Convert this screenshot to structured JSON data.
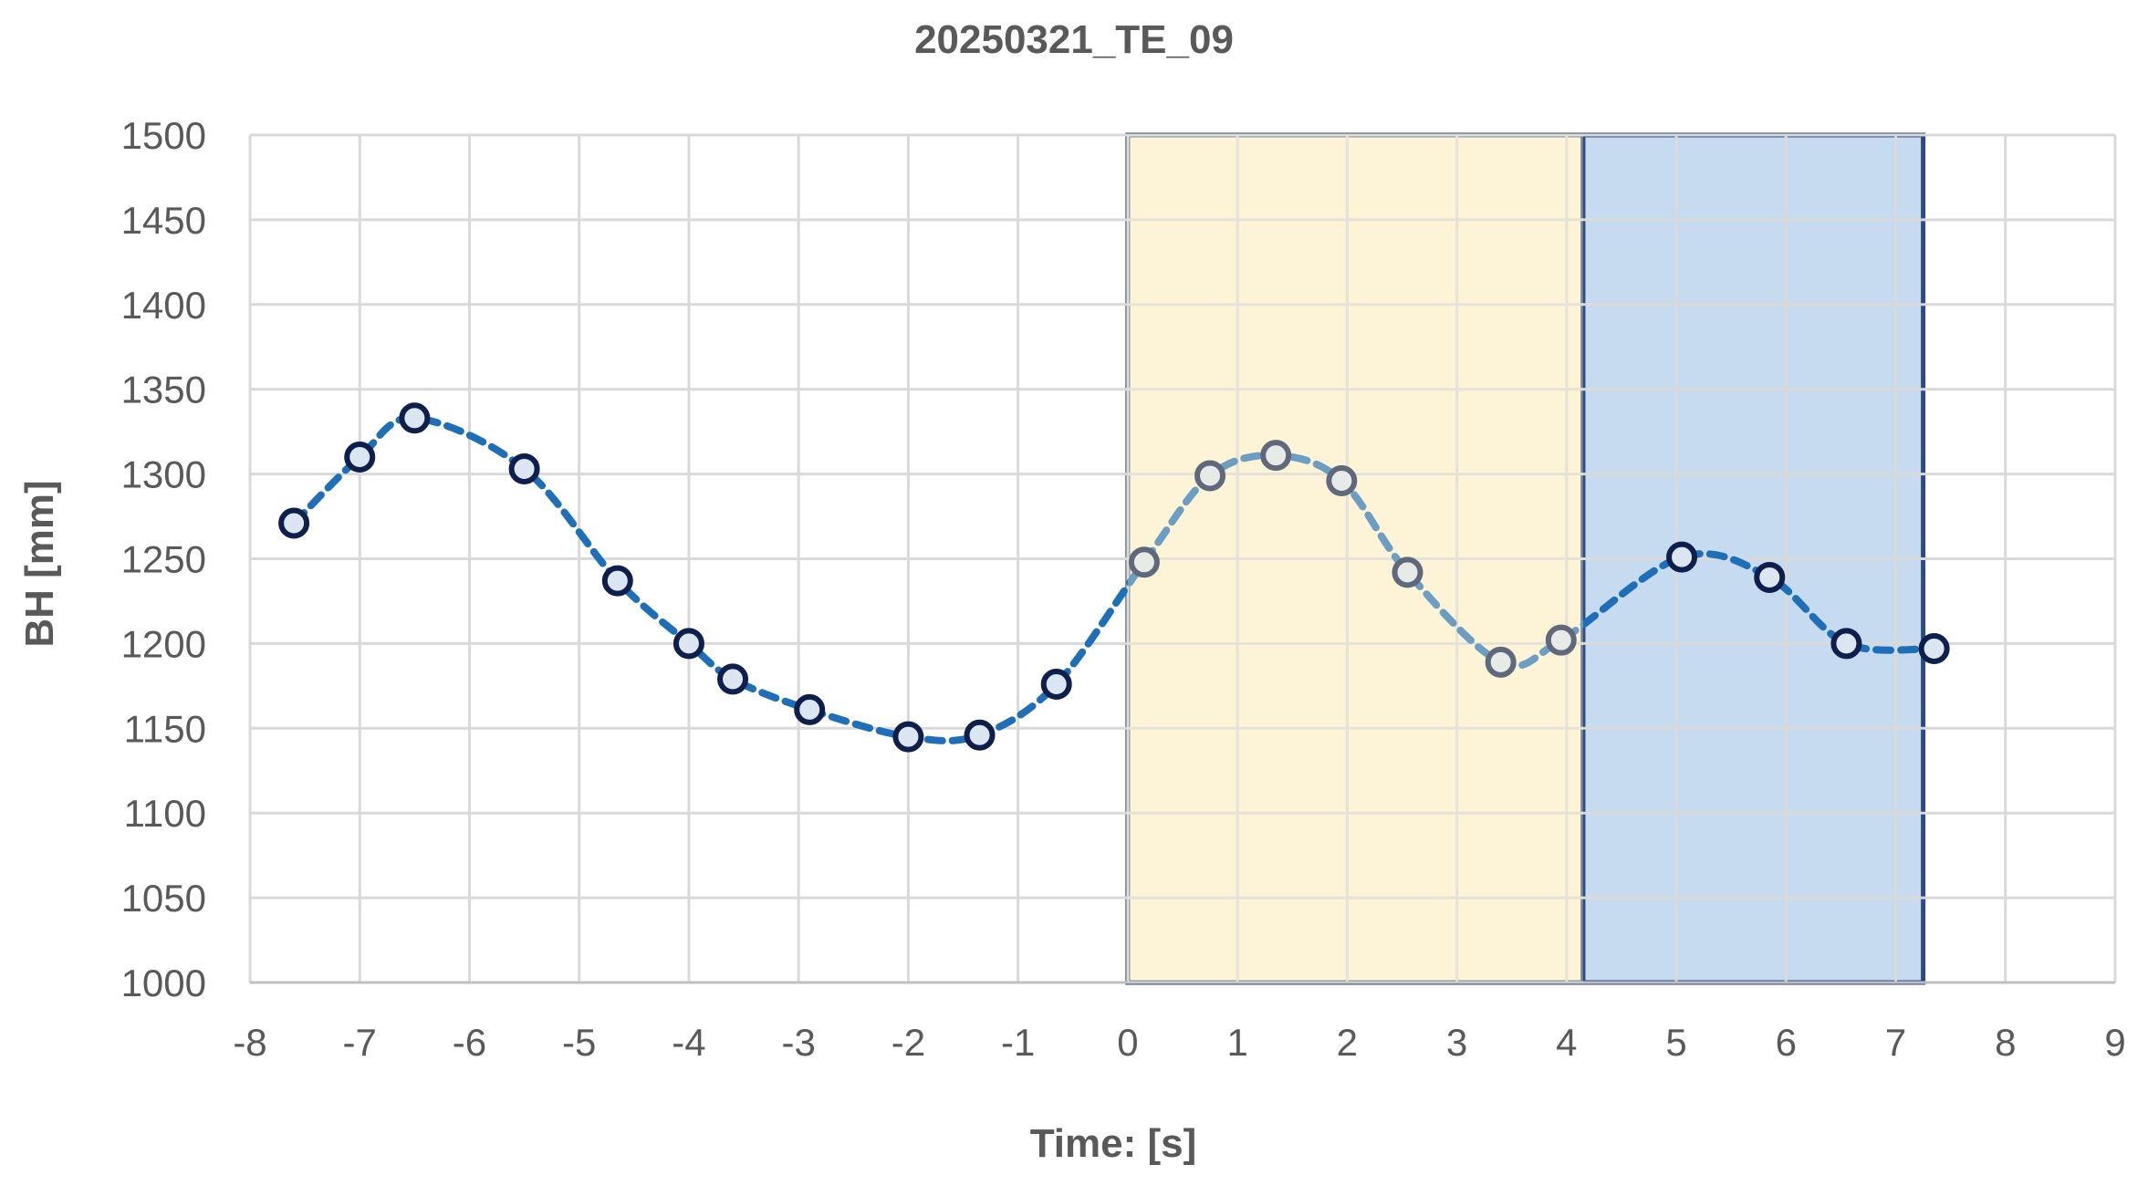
{
  "chart_data": {
    "type": "scatter",
    "title": "20250321_TE_09",
    "xlabel": "Time: [s]",
    "ylabel": "BH [mm]",
    "xlim": [
      -8,
      9
    ],
    "ylim": [
      1000,
      1500
    ],
    "xticks": [
      -8,
      -7,
      -6,
      -5,
      -4,
      -3,
      -2,
      -1,
      0,
      1,
      2,
      3,
      4,
      5,
      6,
      7,
      8,
      9
    ],
    "yticks": [
      1000,
      1050,
      1100,
      1150,
      1200,
      1250,
      1300,
      1350,
      1400,
      1450,
      1500
    ],
    "grid": true,
    "legend": "none",
    "line_style": "dashed smoothed",
    "colors": {
      "line": "#1f6fb8",
      "marker_edge": "#0d1f4a",
      "marker_fill": "#dce6f2",
      "region_yellow": "#fdf3d6",
      "region_blue": "#c6dbf0",
      "region_border": "#2f4b7c",
      "grid": "#d9d9d9",
      "axis_text": "#595959"
    },
    "regions": [
      {
        "x_start": 0.0,
        "x_end": 4.15,
        "color": "yellow"
      },
      {
        "x_start": 4.15,
        "x_end": 7.25,
        "color": "blue"
      }
    ],
    "series": [
      {
        "points": [
          [
            -7.6,
            1271
          ],
          [
            -7.0,
            1310
          ],
          [
            -6.5,
            1333
          ],
          [
            -5.5,
            1303
          ],
          [
            -4.65,
            1237
          ],
          [
            -4.0,
            1200
          ],
          [
            -3.6,
            1179
          ],
          [
            -2.9,
            1161
          ],
          [
            -2.0,
            1145
          ],
          [
            -1.35,
            1146
          ],
          [
            -0.65,
            1176
          ],
          [
            0.15,
            1248
          ],
          [
            0.75,
            1299
          ],
          [
            1.35,
            1311
          ],
          [
            1.95,
            1296
          ],
          [
            2.55,
            1242
          ],
          [
            3.4,
            1189
          ],
          [
            3.95,
            1202
          ],
          [
            5.05,
            1251
          ],
          [
            5.85,
            1239
          ],
          [
            6.55,
            1200
          ],
          [
            7.35,
            1197
          ]
        ]
      }
    ]
  }
}
